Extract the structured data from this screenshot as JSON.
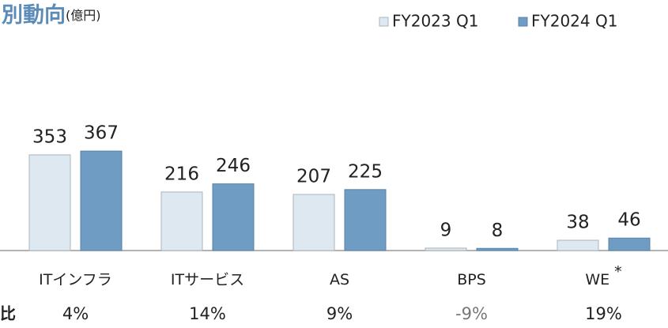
{
  "chart_data": {
    "type": "bar",
    "title": "別動向",
    "unit": "(億円)",
    "categories": [
      "ITインフラ",
      "ITサービス",
      "AS",
      "BPS",
      "WE"
    ],
    "category_notes": [
      null,
      null,
      null,
      null,
      "*"
    ],
    "series": [
      {
        "name": "FY2023 Q1",
        "color": "#dde8f0",
        "values": [
          353,
          216,
          207,
          9,
          38
        ]
      },
      {
        "name": "FY2024 Q1",
        "color": "#6f9cc2",
        "values": [
          367,
          246,
          225,
          8,
          46
        ]
      }
    ],
    "row_label": "比",
    "growth_labels": [
      "4%",
      "14%",
      "9%",
      "-9%",
      "19%"
    ],
    "legend": "top-right"
  }
}
